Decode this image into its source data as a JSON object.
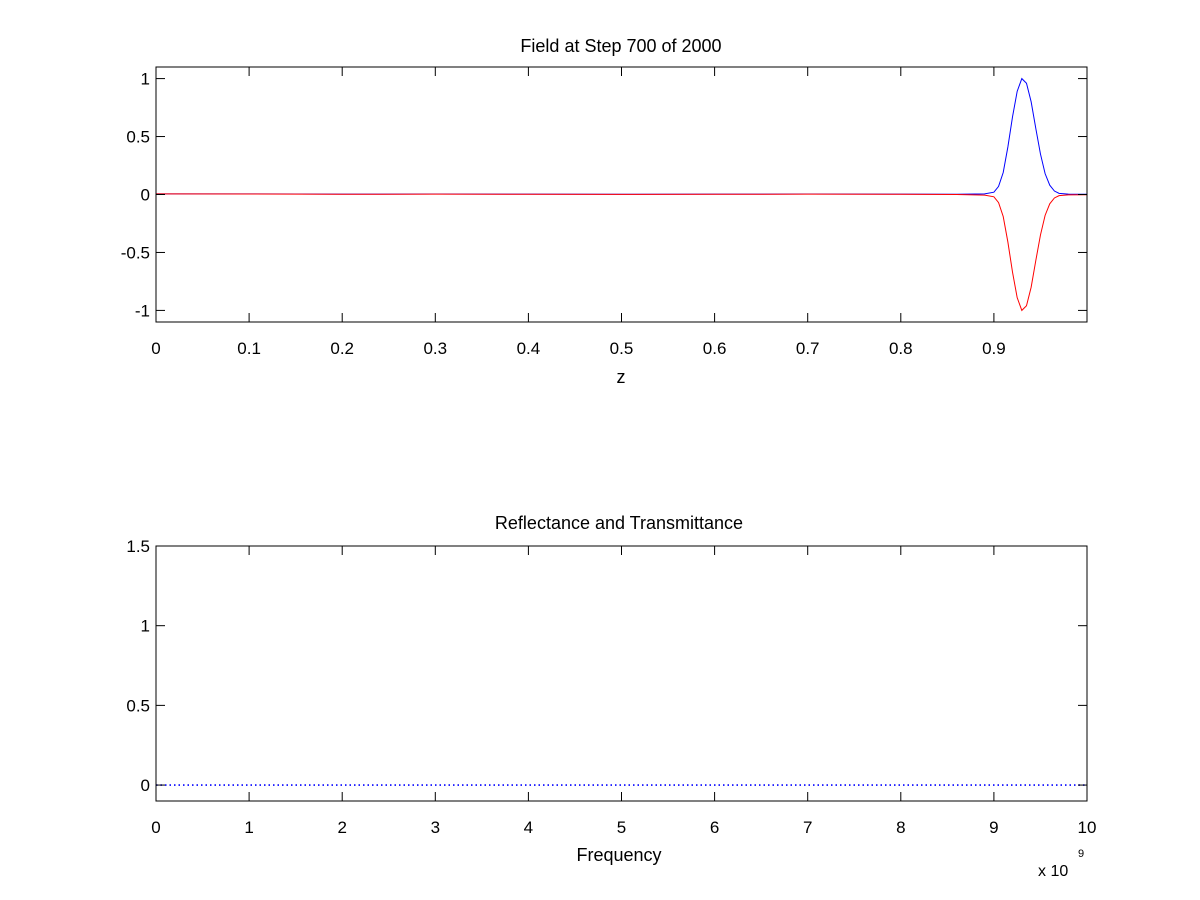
{
  "chart_data": [
    {
      "type": "line",
      "title": "Field at Step 700 of 2000",
      "xlabel": "z",
      "ylabel": "",
      "xlim": [
        0,
        1
      ],
      "ylim": [
        -1.1,
        1.1
      ],
      "xticks": [
        0,
        0.1,
        0.2,
        0.3,
        0.4,
        0.5,
        0.6,
        0.7,
        0.8,
        0.9
      ],
      "xtick_labels": [
        "0",
        "0.1",
        "0.2",
        "0.3",
        "0.4",
        "0.5",
        "0.6",
        "0.7",
        "0.8",
        "0.9"
      ],
      "yticks": [
        1,
        0.5,
        0,
        -0.5,
        -1
      ],
      "ytick_labels": [
        "1",
        "0.5",
        "0",
        "-0.5",
        "-1"
      ],
      "series": [
        {
          "color": "#0000ff",
          "x": [
            0,
            0.1,
            0.2,
            0.3,
            0.4,
            0.5,
            0.6,
            0.7,
            0.8,
            0.86,
            0.89,
            0.9,
            0.905,
            0.91,
            0.915,
            0.92,
            0.925,
            0.93,
            0.935,
            0.94,
            0.945,
            0.95,
            0.955,
            0.96,
            0.965,
            0.97,
            0.98,
            1.0
          ],
          "values": [
            0.005,
            0.005,
            0.003,
            0.004,
            0.003,
            0.002,
            0.003,
            0.004,
            0.003,
            0.002,
            0.005,
            0.02,
            0.07,
            0.19,
            0.41,
            0.67,
            0.89,
            1.0,
            0.96,
            0.8,
            0.57,
            0.35,
            0.18,
            0.08,
            0.03,
            0.01,
            0.003,
            0.002
          ]
        },
        {
          "color": "#ff0000",
          "x": [
            0,
            0.1,
            0.2,
            0.3,
            0.4,
            0.5,
            0.6,
            0.7,
            0.8,
            0.86,
            0.89,
            0.9,
            0.905,
            0.91,
            0.915,
            0.92,
            0.925,
            0.93,
            0.935,
            0.94,
            0.945,
            0.95,
            0.955,
            0.96,
            0.965,
            0.97,
            0.98,
            1.0
          ],
          "values": [
            0.005,
            0.004,
            0.002,
            0.003,
            0.002,
            0.001,
            0.002,
            0.003,
            0.002,
            0.0,
            -0.005,
            -0.02,
            -0.07,
            -0.19,
            -0.41,
            -0.67,
            -0.89,
            -1.0,
            -0.96,
            -0.8,
            -0.57,
            -0.35,
            -0.18,
            -0.08,
            -0.03,
            -0.01,
            -0.003,
            -0.002
          ]
        }
      ]
    },
    {
      "type": "line",
      "title": "Reflectance and Transmittance",
      "xlabel": "Frequency",
      "ylabel": "",
      "xlim": [
        0,
        10
      ],
      "ylim": [
        -0.1,
        1.5
      ],
      "xticks": [
        0,
        1,
        2,
        3,
        4,
        5,
        6,
        7,
        8,
        9,
        10
      ],
      "xtick_labels": [
        "0",
        "1",
        "2",
        "3",
        "4",
        "5",
        "6",
        "7",
        "8",
        "9",
        "10"
      ],
      "yticks": [
        1.5,
        1,
        0.5,
        0
      ],
      "ytick_labels": [
        "1.5",
        "1",
        "0.5",
        "0"
      ],
      "x_exponent": {
        "base": "x 10",
        "power": "9"
      },
      "series": [
        {
          "color": "#0000ff",
          "style": "dotted",
          "x": [
            0,
            10
          ],
          "values": [
            0,
            0
          ]
        }
      ]
    }
  ]
}
